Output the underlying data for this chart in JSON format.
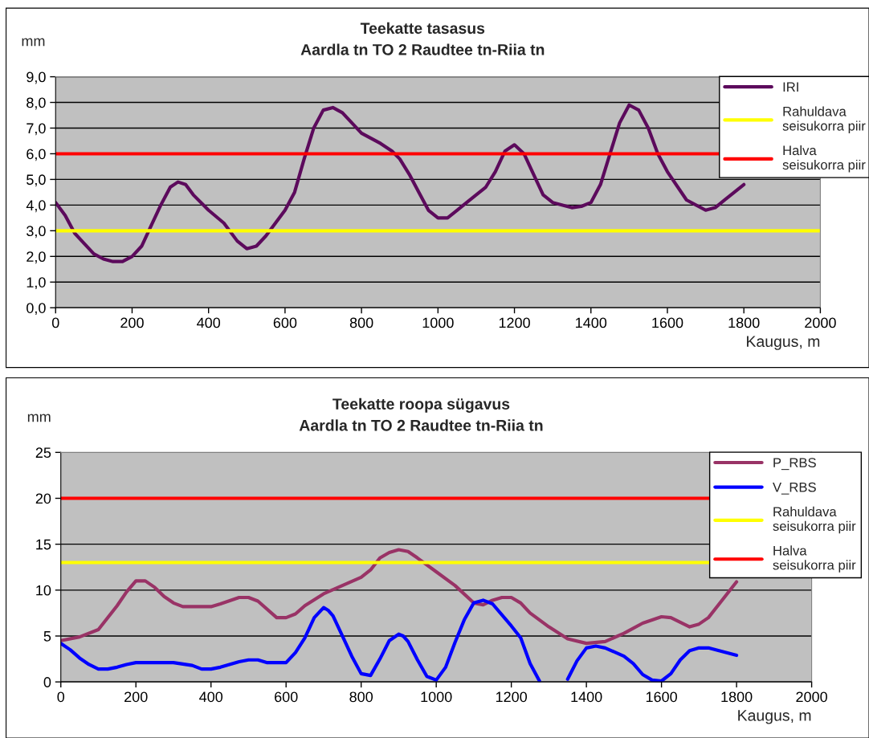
{
  "chart_data": [
    {
      "type": "line",
      "title": "Teekatte tasasus\nAardla tn TO 2 Raudtee tn-Riia tn",
      "xlabel": "Kaugus, m",
      "ylabel": "mm",
      "xlim": [
        0,
        2000
      ],
      "xticks": [
        0,
        200,
        400,
        600,
        800,
        1000,
        1200,
        1400,
        1600,
        1800,
        2000
      ],
      "ylim": [
        0,
        9
      ],
      "yticks": [
        {
          "value": 0,
          "label": "0,0"
        },
        {
          "value": 1,
          "label": "1,0"
        },
        {
          "value": 2,
          "label": "2,0"
        },
        {
          "value": 3,
          "label": "3,0"
        },
        {
          "value": 4,
          "label": "4,0"
        },
        {
          "value": 5,
          "label": "5,0"
        },
        {
          "value": 6,
          "label": "6,0"
        },
        {
          "value": 7,
          "label": "7,0"
        },
        {
          "value": 8,
          "label": "8,0"
        },
        {
          "value": 9,
          "label": "9,0"
        }
      ],
      "grid": "y",
      "legend": "top right",
      "marker": "none",
      "line_style": "solid",
      "series": [
        {
          "name": "IRI",
          "color": "#5c0a5c",
          "x": [
            0,
            25,
            50,
            75,
            100,
            125,
            150,
            175,
            200,
            225,
            250,
            275,
            300,
            320,
            340,
            360,
            400,
            440,
            475,
            500,
            525,
            550,
            600,
            625,
            650,
            675,
            700,
            725,
            750,
            800,
            850,
            880,
            900,
            925,
            950,
            975,
            1000,
            1025,
            1050,
            1100,
            1125,
            1150,
            1175,
            1200,
            1225,
            1250,
            1275,
            1300,
            1350,
            1375,
            1400,
            1425,
            1450,
            1475,
            1500,
            1525,
            1550,
            1575,
            1600,
            1650,
            1700,
            1725,
            1750,
            1800
          ],
          "values": [
            4.1,
            3.6,
            2.9,
            2.5,
            2.1,
            1.9,
            1.8,
            1.8,
            2.0,
            2.4,
            3.2,
            4.0,
            4.7,
            4.9,
            4.8,
            4.4,
            3.8,
            3.3,
            2.6,
            2.3,
            2.4,
            2.8,
            3.8,
            4.5,
            5.8,
            7.0,
            7.7,
            7.8,
            7.6,
            6.8,
            6.4,
            6.1,
            5.8,
            5.2,
            4.5,
            3.8,
            3.5,
            3.5,
            3.8,
            4.4,
            4.7,
            5.3,
            6.1,
            6.35,
            6.0,
            5.2,
            4.4,
            4.1,
            3.9,
            3.95,
            4.1,
            4.8,
            6.0,
            7.2,
            7.9,
            7.7,
            7.0,
            6.0,
            5.3,
            4.2,
            3.8,
            3.9,
            4.2,
            4.8
          ]
        }
      ],
      "ref_lines": [
        {
          "axis": "y",
          "value": 3,
          "label": "Rahuldava seisukorra piir",
          "color": "#ffff00"
        },
        {
          "axis": "y",
          "value": 6,
          "label": "Halva seisukorra piir",
          "color": "#ff0000"
        }
      ]
    },
    {
      "type": "line",
      "title": "Teekatte roopa sügavus\nAardla tn TO 2 Raudtee tn-Riia tn",
      "xlabel": "Kaugus, m",
      "ylabel": "mm",
      "xlim": [
        0,
        2000
      ],
      "xticks": [
        0,
        200,
        400,
        600,
        800,
        1000,
        1200,
        1400,
        1600,
        1800,
        2000
      ],
      "ylim": [
        0,
        25
      ],
      "yticks": [
        0,
        5,
        10,
        15,
        20,
        25
      ],
      "grid": "y",
      "legend": "top right",
      "marker": "none",
      "line_style": "solid",
      "series": [
        {
          "name": "P_RBS",
          "color": "#993366",
          "x": [
            0,
            50,
            100,
            150,
            175,
            200,
            225,
            250,
            275,
            300,
            325,
            400,
            425,
            475,
            500,
            525,
            575,
            600,
            625,
            650,
            700,
            750,
            800,
            825,
            850,
            875,
            900,
            925,
            950,
            1000,
            1050,
            1100,
            1125,
            1150,
            1175,
            1200,
            1225,
            1250,
            1300,
            1350,
            1400,
            1450,
            1500,
            1550,
            1600,
            1625,
            1675,
            1700,
            1725,
            1800
          ],
          "values": [
            4.5,
            4.9,
            5.7,
            8.3,
            9.8,
            11.0,
            11.0,
            10.3,
            9.3,
            8.6,
            8.2,
            8.2,
            8.5,
            9.2,
            9.2,
            8.8,
            7.0,
            7.0,
            7.4,
            8.3,
            9.6,
            10.5,
            11.4,
            12.2,
            13.5,
            14.1,
            14.4,
            14.2,
            13.5,
            12.0,
            10.5,
            8.6,
            8.4,
            8.9,
            9.2,
            9.2,
            8.6,
            7.5,
            6.0,
            4.7,
            4.2,
            4.4,
            5.3,
            6.4,
            7.1,
            7.0,
            6.0,
            6.3,
            7.0,
            10.9
          ]
        },
        {
          "name": "V_RBS",
          "color": "#0000ff",
          "x": [
            0,
            25,
            50,
            75,
            100,
            125,
            150,
            175,
            200,
            300,
            350,
            375,
            400,
            425,
            475,
            500,
            525,
            550,
            575,
            600,
            625,
            650,
            675,
            700,
            712,
            725,
            750,
            775,
            800,
            825,
            850,
            875,
            900,
            912,
            925,
            950,
            975,
            1000,
            1025,
            1050,
            1075,
            1100,
            1125,
            1150,
            1200,
            1225,
            1250,
            1275,
            1300,
            1325,
            1350,
            1375,
            1400,
            1425,
            1450,
            1500,
            1525,
            1550,
            1575,
            1600,
            1625,
            1650,
            1675,
            1700,
            1725,
            1800
          ],
          "values": [
            4.2,
            3.5,
            2.6,
            1.9,
            1.4,
            1.4,
            1.6,
            1.9,
            2.1,
            2.1,
            1.8,
            1.4,
            1.4,
            1.6,
            2.2,
            2.4,
            2.4,
            2.1,
            2.1,
            2.1,
            3.2,
            4.8,
            7.0,
            8.1,
            7.8,
            7.2,
            5.0,
            2.8,
            0.9,
            0.7,
            2.5,
            4.5,
            5.2,
            5.0,
            4.4,
            2.4,
            0.6,
            0.2,
            1.6,
            4.3,
            6.8,
            8.6,
            8.9,
            8.5,
            6.1,
            4.8,
            2.0,
            0.1,
            null,
            null,
            0.3,
            2.3,
            3.7,
            3.9,
            3.7,
            2.8,
            2.0,
            0.8,
            0.2,
            0.1,
            0.9,
            2.4,
            3.4,
            3.7,
            3.7,
            2.9
          ]
        }
      ],
      "ref_lines": [
        {
          "axis": "y",
          "value": 13,
          "label": "Rahuldava seisukorra piir",
          "color": "#ffff00"
        },
        {
          "axis": "y",
          "value": 20,
          "label": "Halva seisukorra piir",
          "color": "#ff0000"
        }
      ]
    }
  ]
}
